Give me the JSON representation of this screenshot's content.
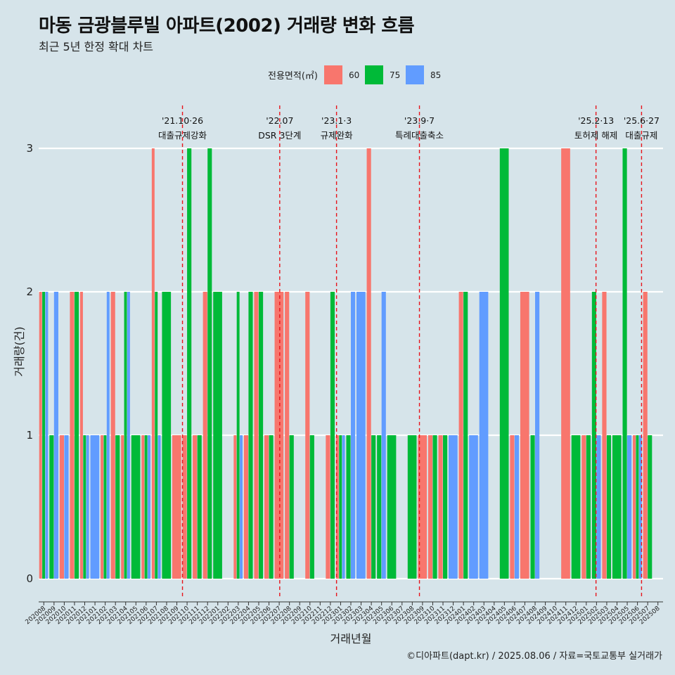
{
  "page": {
    "title": "마동 금광블루빌 아파트(2002) 거래량 변화 흐름",
    "subtitle": "최근 5년 한정 확대 차트",
    "caption": "©디아파트(dapt.kr) / 2025.08.06 / 자료=국토교통부 실거래가"
  },
  "chart_data": {
    "type": "bar",
    "xlabel": "거래년월",
    "ylabel": "거래량(건)",
    "ylim": [
      0,
      3
    ],
    "yticks": [
      0,
      1,
      2,
      3
    ],
    "legend_title": "전용면적(㎡)",
    "legend_placement": "top-center",
    "series": [
      {
        "name": "60",
        "color": "#F8766D"
      },
      {
        "name": "75",
        "color": "#00BA38"
      },
      {
        "name": "85",
        "color": "#619CFF"
      }
    ],
    "months": [
      "202008",
      "202009",
      "202010",
      "202011",
      "202012",
      "202101",
      "202102",
      "202103",
      "202104",
      "202105",
      "202106",
      "202107",
      "202108",
      "202109",
      "202110",
      "202111",
      "202112",
      "202201",
      "202202",
      "202203",
      "202204",
      "202205",
      "202206",
      "202207",
      "202208",
      "202209",
      "202210",
      "202211",
      "202212",
      "202301",
      "202302",
      "202303",
      "202304",
      "202305",
      "202306",
      "202307",
      "202308",
      "202309",
      "202310",
      "202311",
      "202312",
      "202401",
      "202402",
      "202403",
      "202404",
      "202405",
      "202406",
      "202407",
      "202408",
      "202409",
      "202410",
      "202411",
      "202412",
      "202501",
      "202502",
      "202503",
      "202504",
      "202505",
      "202506",
      "202507",
      "202508"
    ],
    "bars": [
      {
        "month": "202008",
        "size": "60",
        "count": 2
      },
      {
        "month": "202008",
        "size": "75",
        "count": 2
      },
      {
        "month": "202008",
        "size": "85",
        "count": 2
      },
      {
        "month": "202009",
        "size": "75",
        "count": 1
      },
      {
        "month": "202009",
        "size": "85",
        "count": 2
      },
      {
        "month": "202010",
        "size": "60",
        "count": 1
      },
      {
        "month": "202010",
        "size": "85",
        "count": 1
      },
      {
        "month": "202011",
        "size": "60",
        "count": 2
      },
      {
        "month": "202011",
        "size": "75",
        "count": 2
      },
      {
        "month": "202012",
        "size": "60",
        "count": 2
      },
      {
        "month": "202012",
        "size": "75",
        "count": 1
      },
      {
        "month": "202012",
        "size": "85",
        "count": 1
      },
      {
        "month": "202101",
        "size": "85",
        "count": 1
      },
      {
        "month": "202102",
        "size": "60",
        "count": 1
      },
      {
        "month": "202102",
        "size": "75",
        "count": 1
      },
      {
        "month": "202102",
        "size": "85",
        "count": 2
      },
      {
        "month": "202103",
        "size": "60",
        "count": 2
      },
      {
        "month": "202103",
        "size": "75",
        "count": 1
      },
      {
        "month": "202104",
        "size": "60",
        "count": 1
      },
      {
        "month": "202104",
        "size": "75",
        "count": 2
      },
      {
        "month": "202104",
        "size": "85",
        "count": 2
      },
      {
        "month": "202105",
        "size": "75",
        "count": 1
      },
      {
        "month": "202106",
        "size": "60",
        "count": 1
      },
      {
        "month": "202106",
        "size": "75",
        "count": 1
      },
      {
        "month": "202106",
        "size": "85",
        "count": 1
      },
      {
        "month": "202107",
        "size": "60",
        "count": 3
      },
      {
        "month": "202107",
        "size": "75",
        "count": 2
      },
      {
        "month": "202107",
        "size": "85",
        "count": 1
      },
      {
        "month": "202108",
        "size": "75",
        "count": 2
      },
      {
        "month": "202109",
        "size": "60",
        "count": 1
      },
      {
        "month": "202110",
        "size": "60",
        "count": 1
      },
      {
        "month": "202110",
        "size": "75",
        "count": 3
      },
      {
        "month": "202111",
        "size": "60",
        "count": 1
      },
      {
        "month": "202111",
        "size": "75",
        "count": 1
      },
      {
        "month": "202112",
        "size": "60",
        "count": 2
      },
      {
        "month": "202112",
        "size": "75",
        "count": 3
      },
      {
        "month": "202201",
        "size": "75",
        "count": 2
      },
      {
        "month": "202203",
        "size": "60",
        "count": 1
      },
      {
        "month": "202203",
        "size": "75",
        "count": 2
      },
      {
        "month": "202203",
        "size": "85",
        "count": 1
      },
      {
        "month": "202204",
        "size": "60",
        "count": 1
      },
      {
        "month": "202204",
        "size": "75",
        "count": 2
      },
      {
        "month": "202205",
        "size": "60",
        "count": 2
      },
      {
        "month": "202205",
        "size": "75",
        "count": 2
      },
      {
        "month": "202206",
        "size": "60",
        "count": 1
      },
      {
        "month": "202206",
        "size": "75",
        "count": 1
      },
      {
        "month": "202207",
        "size": "60",
        "count": 2
      },
      {
        "month": "202208",
        "size": "60",
        "count": 2
      },
      {
        "month": "202208",
        "size": "75",
        "count": 1
      },
      {
        "month": "202210",
        "size": "60",
        "count": 2
      },
      {
        "month": "202210",
        "size": "75",
        "count": 1
      },
      {
        "month": "202212",
        "size": "60",
        "count": 1
      },
      {
        "month": "202212",
        "size": "75",
        "count": 2
      },
      {
        "month": "202301",
        "size": "60",
        "count": 1
      },
      {
        "month": "202301",
        "size": "75",
        "count": 1
      },
      {
        "month": "202301",
        "size": "85",
        "count": 1
      },
      {
        "month": "202302",
        "size": "75",
        "count": 1
      },
      {
        "month": "202302",
        "size": "85",
        "count": 2
      },
      {
        "month": "202303",
        "size": "85",
        "count": 2
      },
      {
        "month": "202304",
        "size": "60",
        "count": 3
      },
      {
        "month": "202304",
        "size": "75",
        "count": 1
      },
      {
        "month": "202305",
        "size": "75",
        "count": 1
      },
      {
        "month": "202305",
        "size": "85",
        "count": 2
      },
      {
        "month": "202306",
        "size": "75",
        "count": 1
      },
      {
        "month": "202308",
        "size": "75",
        "count": 1
      },
      {
        "month": "202309",
        "size": "60",
        "count": 1
      },
      {
        "month": "202310",
        "size": "60",
        "count": 1
      },
      {
        "month": "202310",
        "size": "75",
        "count": 1
      },
      {
        "month": "202311",
        "size": "60",
        "count": 1
      },
      {
        "month": "202311",
        "size": "75",
        "count": 1
      },
      {
        "month": "202312",
        "size": "85",
        "count": 1
      },
      {
        "month": "202401",
        "size": "60",
        "count": 2
      },
      {
        "month": "202401",
        "size": "75",
        "count": 2
      },
      {
        "month": "202402",
        "size": "85",
        "count": 1
      },
      {
        "month": "202403",
        "size": "85",
        "count": 2
      },
      {
        "month": "202405",
        "size": "75",
        "count": 3
      },
      {
        "month": "202406",
        "size": "60",
        "count": 1
      },
      {
        "month": "202406",
        "size": "85",
        "count": 1
      },
      {
        "month": "202407",
        "size": "60",
        "count": 2
      },
      {
        "month": "202408",
        "size": "75",
        "count": 1
      },
      {
        "month": "202408",
        "size": "85",
        "count": 2
      },
      {
        "month": "202411",
        "size": "60",
        "count": 3
      },
      {
        "month": "202412",
        "size": "75",
        "count": 1
      },
      {
        "month": "202501",
        "size": "60",
        "count": 1
      },
      {
        "month": "202501",
        "size": "75",
        "count": 1
      },
      {
        "month": "202502",
        "size": "75",
        "count": 2
      },
      {
        "month": "202502",
        "size": "85",
        "count": 1
      },
      {
        "month": "202503",
        "size": "60",
        "count": 2
      },
      {
        "month": "202503",
        "size": "75",
        "count": 1
      },
      {
        "month": "202504",
        "size": "75",
        "count": 1
      },
      {
        "month": "202505",
        "size": "75",
        "count": 3
      },
      {
        "month": "202505",
        "size": "85",
        "count": 1
      },
      {
        "month": "202506",
        "size": "60",
        "count": 1
      },
      {
        "month": "202506",
        "size": "75",
        "count": 1
      },
      {
        "month": "202506",
        "size": "85",
        "count": 1
      },
      {
        "month": "202507",
        "size": "60",
        "count": 2
      },
      {
        "month": "202507",
        "size": "75",
        "count": 1
      }
    ],
    "events": [
      {
        "label1": "'21.10·26",
        "label2": "대출규제강화",
        "month": "202110",
        "pos": 0.05
      },
      {
        "label1": "'22.07",
        "label2": "DSR 3단계",
        "month": "202207",
        "pos": 0.55
      },
      {
        "label1": "'23.1·3",
        "label2": "규제완화",
        "month": "202301",
        "pos": 0.1
      },
      {
        "label1": "'23.9·7",
        "label2": "특례대출축소",
        "month": "202309",
        "pos": 0.2
      },
      {
        "label1": "'25.2·13",
        "label2": "토허제 해제",
        "month": "202502",
        "pos": 0.45
      },
      {
        "label1": "'25.6·27",
        "label2": "대출규제",
        "month": "202506",
        "pos": 0.9
      }
    ]
  }
}
